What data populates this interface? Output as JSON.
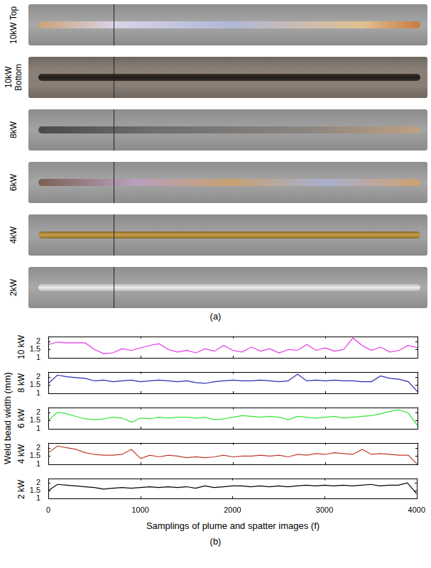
{
  "panel_a": {
    "label": "(a)",
    "photos": [
      "10kW Top",
      "10kW Bottom",
      "8kW",
      "6kW",
      "4kW",
      "2kW"
    ]
  },
  "panel_b": {
    "label": "(b)",
    "y_label": "Weld bead width (mm)",
    "x_label": "Samplings of plume and spatter images (f)"
  },
  "chart_data": [
    {
      "type": "line",
      "title": "10 kW",
      "color": "#e633e6",
      "tick_labels": "y",
      "x": [
        0,
        100,
        200,
        300,
        400,
        500,
        600,
        700,
        800,
        900,
        1000,
        1100,
        1200,
        1300,
        1400,
        1500,
        1600,
        1700,
        1800,
        1900,
        2000,
        2100,
        2200,
        2300,
        2400,
        2500,
        2600,
        2700,
        2800,
        2900,
        3000,
        3100,
        3200,
        3300,
        3400,
        3500,
        3600,
        3700,
        3800,
        3900,
        4000
      ],
      "values": [
        1.8,
        1.95,
        1.9,
        1.9,
        1.9,
        1.5,
        1.25,
        1.3,
        1.55,
        1.45,
        1.6,
        1.75,
        1.85,
        1.5,
        1.35,
        1.45,
        1.3,
        1.55,
        1.4,
        1.75,
        1.45,
        1.35,
        1.65,
        1.4,
        1.55,
        1.3,
        1.5,
        1.45,
        1.8,
        1.45,
        1.6,
        1.4,
        1.5,
        2.2,
        1.75,
        1.45,
        1.65,
        1.35,
        1.45,
        1.75,
        1.6
      ],
      "xlim": [
        0,
        4000
      ],
      "xticks": [
        0,
        1000,
        2000,
        3000,
        4000
      ],
      "ylim": [
        1,
        2.3
      ],
      "yticks": [
        1,
        1.5,
        2
      ]
    },
    {
      "type": "line",
      "title": "8 kW",
      "color": "#2b2bb3",
      "tick_labels": "y",
      "x": [
        0,
        100,
        200,
        300,
        400,
        500,
        600,
        700,
        800,
        900,
        1000,
        1100,
        1200,
        1300,
        1400,
        1500,
        1600,
        1700,
        1800,
        1900,
        2000,
        2100,
        2200,
        2300,
        2400,
        2500,
        2600,
        2700,
        2800,
        2900,
        3000,
        3100,
        3200,
        3300,
        3400,
        3500,
        3600,
        3700,
        3800,
        3900,
        4000
      ],
      "values": [
        1.6,
        2.1,
        2.0,
        1.95,
        1.9,
        1.75,
        1.8,
        1.7,
        1.75,
        1.8,
        1.7,
        1.75,
        1.8,
        1.75,
        1.7,
        1.75,
        1.65,
        1.6,
        1.7,
        1.75,
        1.8,
        1.75,
        1.75,
        1.8,
        1.75,
        1.7,
        1.75,
        2.15,
        1.75,
        1.8,
        1.75,
        1.8,
        1.75,
        1.75,
        1.7,
        1.7,
        2.05,
        1.9,
        1.85,
        1.7,
        1.1
      ],
      "xlim": [
        0,
        4000
      ],
      "xticks": [
        0,
        1000,
        2000,
        3000,
        4000
      ],
      "ylim": [
        1,
        2.3
      ],
      "yticks": [
        1,
        1.5,
        2
      ]
    },
    {
      "type": "line",
      "title": "6 kW",
      "color": "#33e633",
      "tick_labels": "y",
      "x": [
        0,
        100,
        200,
        300,
        400,
        500,
        600,
        700,
        800,
        900,
        1000,
        1100,
        1200,
        1300,
        1400,
        1500,
        1600,
        1700,
        1800,
        1900,
        2000,
        2100,
        2200,
        2300,
        2400,
        2500,
        2600,
        2700,
        2800,
        2900,
        3000,
        3100,
        3200,
        3300,
        3400,
        3500,
        3600,
        3700,
        3800,
        3900,
        4000
      ],
      "values": [
        1.5,
        2.0,
        1.9,
        1.75,
        1.6,
        1.55,
        1.6,
        1.7,
        1.65,
        1.4,
        1.65,
        1.6,
        1.7,
        1.65,
        1.7,
        1.7,
        1.65,
        1.7,
        1.55,
        1.6,
        1.7,
        1.8,
        1.75,
        1.7,
        1.75,
        1.7,
        1.55,
        1.75,
        1.7,
        1.65,
        1.7,
        1.75,
        1.65,
        1.7,
        1.75,
        1.8,
        1.9,
        2.05,
        2.15,
        1.95,
        1.2
      ],
      "xlim": [
        0,
        4000
      ],
      "xticks": [
        0,
        1000,
        2000,
        3000,
        4000
      ],
      "ylim": [
        1,
        2.3
      ],
      "yticks": [
        1,
        1.5,
        2
      ]
    },
    {
      "type": "line",
      "title": "4 kW",
      "color": "#c0392b",
      "tick_labels": "y",
      "x": [
        0,
        100,
        200,
        300,
        400,
        500,
        600,
        700,
        800,
        900,
        1000,
        1100,
        1200,
        1300,
        1400,
        1500,
        1600,
        1700,
        1800,
        1900,
        2000,
        2100,
        2200,
        2300,
        2400,
        2500,
        2600,
        2700,
        2800,
        2900,
        3000,
        3100,
        3200,
        3300,
        3400,
        3500,
        3600,
        3700,
        3800,
        3900,
        4000
      ],
      "values": [
        1.7,
        2.1,
        2.0,
        1.9,
        1.7,
        1.6,
        1.55,
        1.55,
        1.6,
        1.9,
        1.35,
        1.55,
        1.45,
        1.55,
        1.5,
        1.4,
        1.45,
        1.4,
        1.45,
        1.55,
        1.45,
        1.5,
        1.5,
        1.55,
        1.5,
        1.55,
        1.45,
        1.6,
        1.55,
        1.65,
        1.6,
        1.7,
        1.65,
        1.6,
        1.9,
        1.6,
        1.65,
        1.6,
        1.55,
        1.55,
        1.0
      ],
      "xlim": [
        0,
        4000
      ],
      "xticks": [
        0,
        1000,
        2000,
        3000,
        4000
      ],
      "ylim": [
        1,
        2.3
      ],
      "yticks": [
        1,
        1.5,
        2
      ]
    },
    {
      "type": "line",
      "title": "2 kW",
      "color": "#000000",
      "x": [
        0,
        100,
        200,
        300,
        400,
        500,
        600,
        700,
        800,
        900,
        1000,
        1100,
        1200,
        1300,
        1400,
        1500,
        1600,
        1700,
        1800,
        1900,
        2000,
        2100,
        2200,
        2300,
        2400,
        2500,
        2600,
        2700,
        2800,
        2900,
        3000,
        3100,
        3200,
        3300,
        3400,
        3500,
        3600,
        3700,
        3800,
        3900,
        4000
      ],
      "values": [
        1.5,
        1.9,
        1.85,
        1.8,
        1.75,
        1.7,
        1.6,
        1.65,
        1.7,
        1.65,
        1.7,
        1.75,
        1.7,
        1.75,
        1.7,
        1.75,
        1.65,
        1.8,
        1.7,
        1.75,
        1.8,
        1.8,
        1.75,
        1.8,
        1.75,
        1.8,
        1.75,
        1.8,
        1.85,
        1.8,
        1.85,
        1.8,
        1.85,
        1.8,
        1.85,
        1.9,
        1.8,
        1.85,
        1.85,
        2.0,
        1.3
      ],
      "xlim": [
        0,
        4000
      ],
      "xticks": [
        0,
        1000,
        2000,
        3000,
        4000
      ],
      "ylim": [
        1,
        2.3
      ],
      "yticks": [
        1,
        1.5,
        2
      ]
    }
  ]
}
